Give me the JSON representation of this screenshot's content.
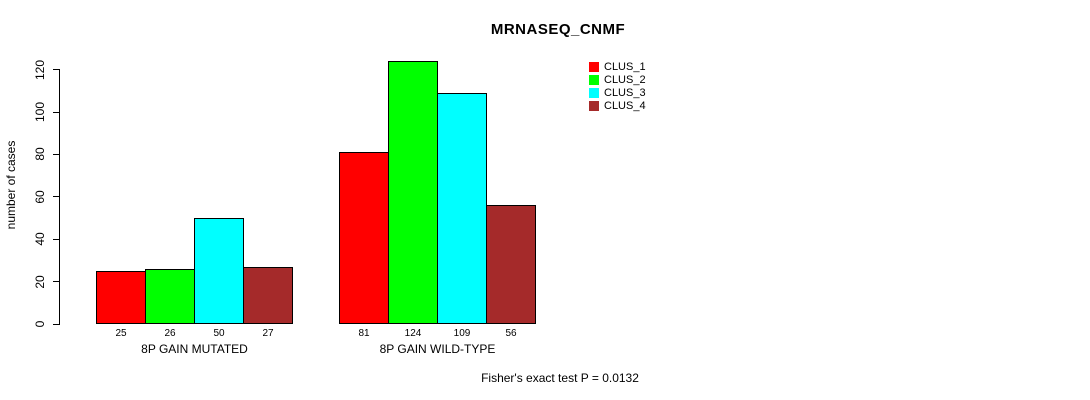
{
  "title": "MRNASEQ_CNMF",
  "footer": "Fisher's exact test P = 0.0132",
  "chart_data": {
    "type": "bar",
    "title": "MRNASEQ_CNMF",
    "ylabel": "number of cases",
    "xlabel": "",
    "ylim": [
      0,
      120
    ],
    "yticks": [
      0,
      20,
      40,
      60,
      80,
      100,
      120
    ],
    "grid": false,
    "legend_position": "top-right",
    "bar_value_labels_shown": true,
    "categories": [
      "8P GAIN MUTATED",
      "8P GAIN WILD-TYPE"
    ],
    "series": [
      {
        "name": "CLUS_1",
        "color": "#FF0000",
        "values": [
          25,
          81
        ]
      },
      {
        "name": "CLUS_2",
        "color": "#00FF00",
        "values": [
          26,
          124
        ]
      },
      {
        "name": "CLUS_3",
        "color": "#00FFFF",
        "values": [
          50,
          109
        ]
      },
      {
        "name": "CLUS_4",
        "color": "#A52A2A",
        "values": [
          27,
          56
        ]
      }
    ],
    "annotation": "Fisher's exact test P = 0.0132"
  }
}
